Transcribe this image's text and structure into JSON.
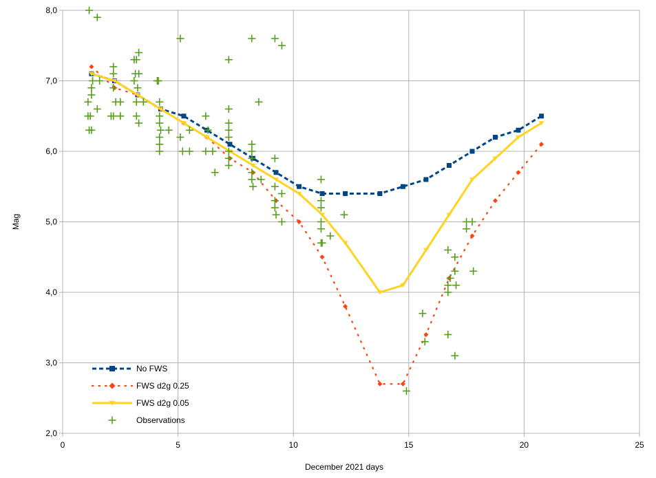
{
  "chart_data": {
    "type": "line",
    "title": "",
    "xlabel": "December 2021 days",
    "ylabel": "Mag",
    "xlim": [
      0,
      25
    ],
    "ylim": [
      2.0,
      8.0
    ],
    "xticks": [
      0,
      5,
      10,
      15,
      20,
      25
    ],
    "yticks": [
      2.0,
      3.0,
      4.0,
      5.0,
      6.0,
      7.0,
      8.0
    ],
    "ytick_labels": [
      "2,0",
      "3,0",
      "4,0",
      "5,0",
      "6,0",
      "7,0",
      "8,0"
    ],
    "grid": true,
    "legend_position": "bottom-left",
    "series": [
      {
        "name": "No FWS",
        "style": "dashed-square",
        "color": "#004586",
        "x": [
          1.25,
          2.25,
          3.25,
          4.25,
          5.25,
          6.25,
          7.25,
          8.25,
          9.25,
          10.25,
          11.25,
          12.25,
          13.75,
          14.75,
          15.75,
          16.75,
          17.75,
          18.75,
          19.75,
          20.75
        ],
        "y": [
          7.1,
          7.0,
          6.8,
          6.6,
          6.5,
          6.3,
          6.1,
          5.9,
          5.7,
          5.5,
          5.4,
          5.4,
          5.4,
          5.5,
          5.6,
          5.8,
          6.0,
          6.2,
          6.3,
          6.5
        ]
      },
      {
        "name": "FWS d2g 0.25",
        "style": "dotted-diamond",
        "color": "#ff420e",
        "x": [
          1.25,
          2.25,
          3.25,
          4.25,
          5.25,
          6.25,
          7.25,
          8.25,
          9.25,
          10.25,
          11.25,
          12.25,
          13.75,
          14.75,
          15.75,
          16.75,
          17.75,
          18.75,
          19.75,
          20.75
        ],
        "y": [
          7.2,
          6.9,
          6.8,
          6.6,
          6.4,
          6.2,
          5.9,
          5.7,
          5.3,
          5.0,
          4.5,
          3.8,
          2.7,
          2.7,
          3.4,
          4.2,
          4.8,
          5.3,
          5.7,
          6.1
        ]
      },
      {
        "name": "FWS d2g 0.05",
        "style": "solid-triangle",
        "color": "#ffd320",
        "x": [
          1.25,
          2.25,
          3.25,
          4.25,
          5.25,
          6.25,
          7.25,
          8.25,
          9.25,
          10.25,
          11.25,
          12.25,
          13.75,
          14.75,
          15.75,
          16.75,
          17.75,
          18.75,
          19.75,
          20.75
        ],
        "y": [
          7.1,
          7.0,
          6.8,
          6.6,
          6.4,
          6.2,
          6.0,
          5.8,
          5.6,
          5.4,
          5.1,
          4.7,
          4.0,
          4.1,
          4.6,
          5.1,
          5.6,
          5.9,
          6.2,
          6.4
        ]
      },
      {
        "name": "Observations",
        "style": "plus",
        "color": "#579d1c",
        "points": [
          [
            1.1,
            6.7
          ],
          [
            1.1,
            6.5
          ],
          [
            1.15,
            6.3
          ],
          [
            1.2,
            6.5
          ],
          [
            1.25,
            6.3
          ],
          [
            1.25,
            6.8
          ],
          [
            1.25,
            6.9
          ],
          [
            1.3,
            7.0
          ],
          [
            1.15,
            8.0
          ],
          [
            1.5,
            7.9
          ],
          [
            1.5,
            6.6
          ],
          [
            1.6,
            7.0
          ],
          [
            2.1,
            6.5
          ],
          [
            2.2,
            6.5
          ],
          [
            2.2,
            6.9
          ],
          [
            2.2,
            7.1
          ],
          [
            2.2,
            7.2
          ],
          [
            2.3,
            6.7
          ],
          [
            2.5,
            6.5
          ],
          [
            2.5,
            6.7
          ],
          [
            3.1,
            7.0
          ],
          [
            3.1,
            7.3
          ],
          [
            3.15,
            7.1
          ],
          [
            3.2,
            7.3
          ],
          [
            3.2,
            6.5
          ],
          [
            3.2,
            6.7
          ],
          [
            3.25,
            6.9
          ],
          [
            3.3,
            7.1
          ],
          [
            3.3,
            7.4
          ],
          [
            3.3,
            6.4
          ],
          [
            3.5,
            6.7
          ],
          [
            4.1,
            7.0
          ],
          [
            4.15,
            7.0
          ],
          [
            4.2,
            6.0
          ],
          [
            4.2,
            6.1
          ],
          [
            4.2,
            6.2
          ],
          [
            4.2,
            6.4
          ],
          [
            4.2,
            6.5
          ],
          [
            4.2,
            6.7
          ],
          [
            4.25,
            6.3
          ],
          [
            4.6,
            6.3
          ],
          [
            5.1,
            7.6
          ],
          [
            5.1,
            6.2
          ],
          [
            5.2,
            6.0
          ],
          [
            5.5,
            6.3
          ],
          [
            5.5,
            6.0
          ],
          [
            6.2,
            6.5
          ],
          [
            6.2,
            6.0
          ],
          [
            6.3,
            6.3
          ],
          [
            6.5,
            6.0
          ],
          [
            6.6,
            5.7
          ],
          [
            7.2,
            7.3
          ],
          [
            7.2,
            6.6
          ],
          [
            7.2,
            6.4
          ],
          [
            7.2,
            6.3
          ],
          [
            7.2,
            6.2
          ],
          [
            7.2,
            6.0
          ],
          [
            7.2,
            5.9
          ],
          [
            7.2,
            5.8
          ],
          [
            8.2,
            7.6
          ],
          [
            8.2,
            6.1
          ],
          [
            8.2,
            6.0
          ],
          [
            8.2,
            5.9
          ],
          [
            8.2,
            5.7
          ],
          [
            8.2,
            5.6
          ],
          [
            8.25,
            5.5
          ],
          [
            8.5,
            6.7
          ],
          [
            8.6,
            5.6
          ],
          [
            9.2,
            7.6
          ],
          [
            9.2,
            5.9
          ],
          [
            9.2,
            5.5
          ],
          [
            9.2,
            5.3
          ],
          [
            9.2,
            5.2
          ],
          [
            9.25,
            5.1
          ],
          [
            9.5,
            7.5
          ],
          [
            9.5,
            5.4
          ],
          [
            9.5,
            5.0
          ],
          [
            11.2,
            5.6
          ],
          [
            11.2,
            5.3
          ],
          [
            11.2,
            5.2
          ],
          [
            11.2,
            5.0
          ],
          [
            11.2,
            4.9
          ],
          [
            11.2,
            4.7
          ],
          [
            11.25,
            4.7
          ],
          [
            11.6,
            4.8
          ],
          [
            12.2,
            5.1
          ],
          [
            14.9,
            2.6
          ],
          [
            15.6,
            3.7
          ],
          [
            15.7,
            3.3
          ],
          [
            16.7,
            4.6
          ],
          [
            16.7,
            4.1
          ],
          [
            16.7,
            4.0
          ],
          [
            16.7,
            3.4
          ],
          [
            16.8,
            4.2
          ],
          [
            17.0,
            4.5
          ],
          [
            17.0,
            4.3
          ],
          [
            17.0,
            3.1
          ],
          [
            17.05,
            4.1
          ],
          [
            17.5,
            5.0
          ],
          [
            17.5,
            4.9
          ],
          [
            17.75,
            5.0
          ],
          [
            17.8,
            4.3
          ]
        ]
      }
    ]
  }
}
